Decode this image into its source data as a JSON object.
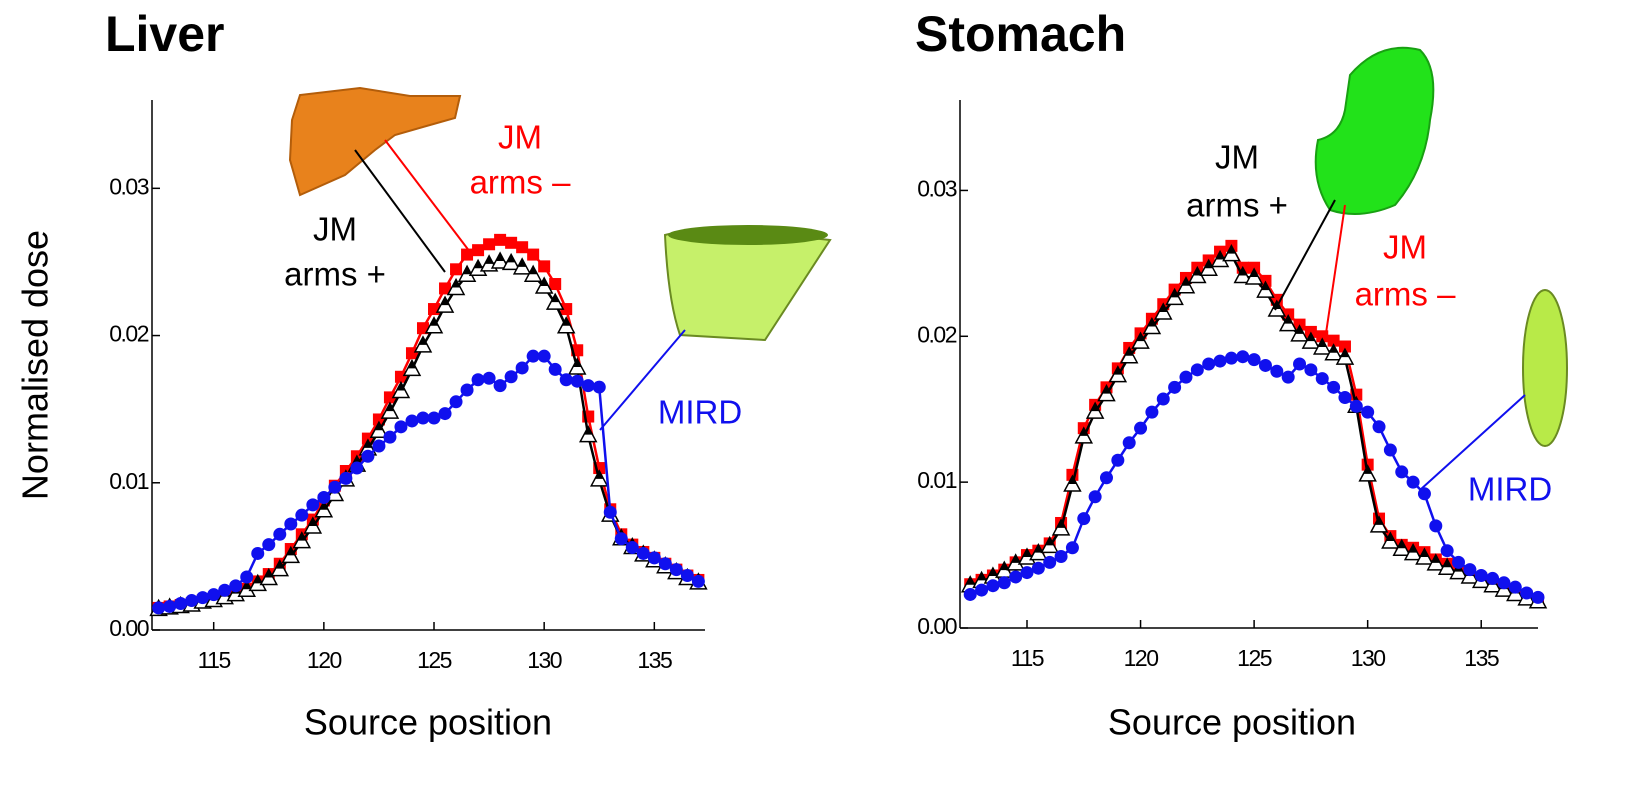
{
  "chart_data": [
    {
      "type": "line",
      "title": "Liver",
      "ylabel": "Normalised dose",
      "xlabel": "Source position",
      "xlim": [
        112.2,
        137.3
      ],
      "ylim": [
        0,
        0.036
      ],
      "xticks": [
        115,
        120,
        125,
        130,
        135
      ],
      "yticks": [
        {
          "value": 0,
          "label": "0.00"
        },
        0.01,
        0.02,
        0.03
      ],
      "x": [
        112.5,
        113,
        113.5,
        114,
        114.5,
        115,
        115.5,
        116,
        116.5,
        117,
        117.5,
        118,
        118.5,
        119,
        119.5,
        120,
        120.5,
        121,
        121.5,
        122,
        122.5,
        123,
        123.5,
        124,
        124.5,
        125,
        125.5,
        126,
        126.5,
        127,
        127.5,
        128,
        128.5,
        129,
        129.5,
        130,
        130.5,
        131,
        131.5,
        132,
        132.5,
        133,
        133.5,
        134,
        134.5,
        135,
        135.5,
        136,
        136.5,
        137
      ],
      "series": [
        {
          "label": [
            "JM",
            "arms –"
          ],
          "color": "#ff0000",
          "marker": "square",
          "values": [
            0.0015,
            0.0016,
            0.0017,
            0.0018,
            0.002,
            0.0021,
            0.0023,
            0.0025,
            0.0028,
            0.0033,
            0.0038,
            0.0045,
            0.0055,
            0.0065,
            0.0075,
            0.0088,
            0.0098,
            0.0108,
            0.0118,
            0.013,
            0.0143,
            0.0158,
            0.0172,
            0.0188,
            0.0205,
            0.0218,
            0.0232,
            0.0245,
            0.0255,
            0.0258,
            0.0262,
            0.0265,
            0.0263,
            0.026,
            0.0255,
            0.0247,
            0.0235,
            0.0218,
            0.019,
            0.0145,
            0.011,
            0.0082,
            0.0065,
            0.0058,
            0.0053,
            0.0049,
            0.0045,
            0.0041,
            0.0037,
            0.0034
          ]
        },
        {
          "label": [
            "JM",
            "arms +"
          ],
          "color": "#000000",
          "marker": "triangle",
          "values": [
            0.0014,
            0.0015,
            0.0016,
            0.0017,
            0.0019,
            0.002,
            0.0022,
            0.0024,
            0.0027,
            0.0031,
            0.0035,
            0.0041,
            0.005,
            0.006,
            0.007,
            0.0081,
            0.0092,
            0.0102,
            0.0112,
            0.0123,
            0.0135,
            0.0148,
            0.0162,
            0.0177,
            0.0193,
            0.0206,
            0.022,
            0.0232,
            0.0241,
            0.0245,
            0.0248,
            0.025,
            0.0249,
            0.0246,
            0.0241,
            0.0233,
            0.0222,
            0.0206,
            0.0178,
            0.0132,
            0.0102,
            0.0078,
            0.0062,
            0.0056,
            0.0051,
            0.0047,
            0.0043,
            0.0039,
            0.0035,
            0.0032
          ]
        },
        {
          "label": [
            "MIRD"
          ],
          "color": "#1010ee",
          "marker": "circle",
          "values": [
            0.0015,
            0.0016,
            0.0018,
            0.002,
            0.0022,
            0.0024,
            0.0027,
            0.003,
            0.0036,
            0.0052,
            0.0058,
            0.0065,
            0.0072,
            0.0078,
            0.0085,
            0.009,
            0.0097,
            0.0103,
            0.011,
            0.0118,
            0.0125,
            0.0131,
            0.0138,
            0.0142,
            0.0144,
            0.0144,
            0.0147,
            0.0155,
            0.0163,
            0.017,
            0.0171,
            0.0166,
            0.0172,
            0.0178,
            0.0186,
            0.0186,
            0.0177,
            0.017,
            0.0169,
            0.0166,
            0.0165,
            0.008,
            0.0062,
            0.0056,
            0.0052,
            0.0049,
            0.0045,
            0.0041,
            0.0037,
            0.0033
          ]
        }
      ]
    },
    {
      "type": "line",
      "title": "Stomach",
      "xlabel": "Source position",
      "xlim": [
        112.05,
        137.5
      ],
      "ylim": [
        0,
        0.0362
      ],
      "xticks": [
        115,
        120,
        125,
        130,
        135
      ],
      "yticks": [
        {
          "value": 0,
          "label": "0.00"
        },
        0.01,
        0.02,
        0.03
      ],
      "x": [
        112.5,
        113,
        113.5,
        114,
        114.5,
        115,
        115.5,
        116,
        116.5,
        117,
        117.5,
        118,
        118.5,
        119,
        119.5,
        120,
        120.5,
        121,
        121.5,
        122,
        122.5,
        123,
        123.5,
        124,
        124.5,
        125,
        125.5,
        126,
        126.5,
        127,
        127.5,
        128,
        128.5,
        129,
        129.5,
        130,
        130.5,
        131,
        131.5,
        132,
        132.5,
        133,
        133.5,
        134,
        134.5,
        135,
        135.5,
        136,
        136.5,
        137,
        137.5
      ],
      "series": [
        {
          "label": [
            "JM",
            "arms –"
          ],
          "color": "#ff0000",
          "marker": "square",
          "values": [
            0.003,
            0.0033,
            0.0036,
            0.004,
            0.0045,
            0.005,
            0.0053,
            0.0058,
            0.0072,
            0.0105,
            0.0137,
            0.0153,
            0.0165,
            0.0178,
            0.0192,
            0.0202,
            0.0212,
            0.0222,
            0.0232,
            0.024,
            0.0247,
            0.0252,
            0.0258,
            0.0262,
            0.0247,
            0.0247,
            0.0238,
            0.0225,
            0.0215,
            0.0208,
            0.0203,
            0.02,
            0.0197,
            0.0193,
            0.016,
            0.0112,
            0.0075,
            0.0063,
            0.0057,
            0.0055,
            0.0052,
            0.0047,
            0.0044,
            0.004,
            0.0037,
            0.0034,
            0.0031,
            0.0028,
            0.0025,
            0.0022,
            0.0019
          ]
        },
        {
          "label": [
            "JM",
            "arms +"
          ],
          "color": "#000000",
          "marker": "triangle",
          "values": [
            0.0029,
            0.0032,
            0.0035,
            0.0039,
            0.0044,
            0.0048,
            0.0051,
            0.0056,
            0.0068,
            0.0098,
            0.0131,
            0.0148,
            0.016,
            0.0173,
            0.0186,
            0.0196,
            0.0206,
            0.0216,
            0.0226,
            0.0234,
            0.0241,
            0.0246,
            0.0252,
            0.0256,
            0.0241,
            0.024,
            0.0231,
            0.0218,
            0.0208,
            0.0201,
            0.0196,
            0.0192,
            0.0188,
            0.0185,
            0.0152,
            0.0105,
            0.007,
            0.0059,
            0.0054,
            0.0051,
            0.0048,
            0.0044,
            0.0041,
            0.0038,
            0.0035,
            0.0032,
            0.0029,
            0.0026,
            0.0023,
            0.002,
            0.0018
          ]
        },
        {
          "label": [
            "MIRD"
          ],
          "color": "#1010ee",
          "marker": "circle",
          "values": [
            0.0023,
            0.0026,
            0.0029,
            0.0031,
            0.0035,
            0.0038,
            0.0041,
            0.0045,
            0.0049,
            0.0055,
            0.0075,
            0.009,
            0.0103,
            0.0115,
            0.0127,
            0.0137,
            0.0148,
            0.0157,
            0.0165,
            0.0172,
            0.0177,
            0.0181,
            0.0183,
            0.0185,
            0.0186,
            0.0184,
            0.018,
            0.0176,
            0.0172,
            0.0181,
            0.0177,
            0.0171,
            0.0165,
            0.0158,
            0.0152,
            0.0148,
            0.0138,
            0.0122,
            0.0107,
            0.01,
            0.0092,
            0.007,
            0.0053,
            0.0045,
            0.004,
            0.0036,
            0.0034,
            0.0031,
            0.0028,
            0.0024,
            0.0021
          ]
        }
      ]
    }
  ]
}
